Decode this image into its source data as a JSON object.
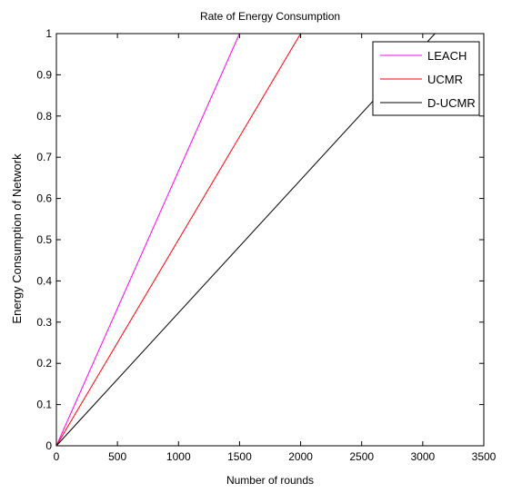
{
  "chart_data": {
    "type": "line",
    "title": "Rate of Energy Consumption",
    "xlabel": "Number of rounds",
    "ylabel": "Energy Consumption of Network",
    "xlim": [
      0,
      3500
    ],
    "ylim": [
      0,
      1
    ],
    "xticks": [
      0,
      500,
      1000,
      1500,
      2000,
      2500,
      3000,
      3500
    ],
    "yticks": [
      0,
      0.1,
      0.2,
      0.3,
      0.4,
      0.5,
      0.6,
      0.7,
      0.8,
      0.9,
      1
    ],
    "xtick_labels": [
      "0",
      "500",
      "1000",
      "1500",
      "2000",
      "2500",
      "3000",
      "3500"
    ],
    "ytick_labels": [
      "0",
      "0.1",
      "0.2",
      "0.3",
      "0.4",
      "0.5",
      "0.6",
      "0.7",
      "0.8",
      "0.9",
      "1"
    ],
    "grid": false,
    "legend_position": "top-right",
    "series": [
      {
        "name": "LEACH",
        "color": "#ff00ff",
        "x": [
          0,
          1500
        ],
        "y": [
          0,
          1
        ]
      },
      {
        "name": "UCMR",
        "color": "#ff0000",
        "x": [
          0,
          2000
        ],
        "y": [
          0,
          1
        ]
      },
      {
        "name": "D-UCMR",
        "color": "#000000",
        "x": [
          0,
          3100
        ],
        "y": [
          0,
          1
        ]
      }
    ]
  }
}
